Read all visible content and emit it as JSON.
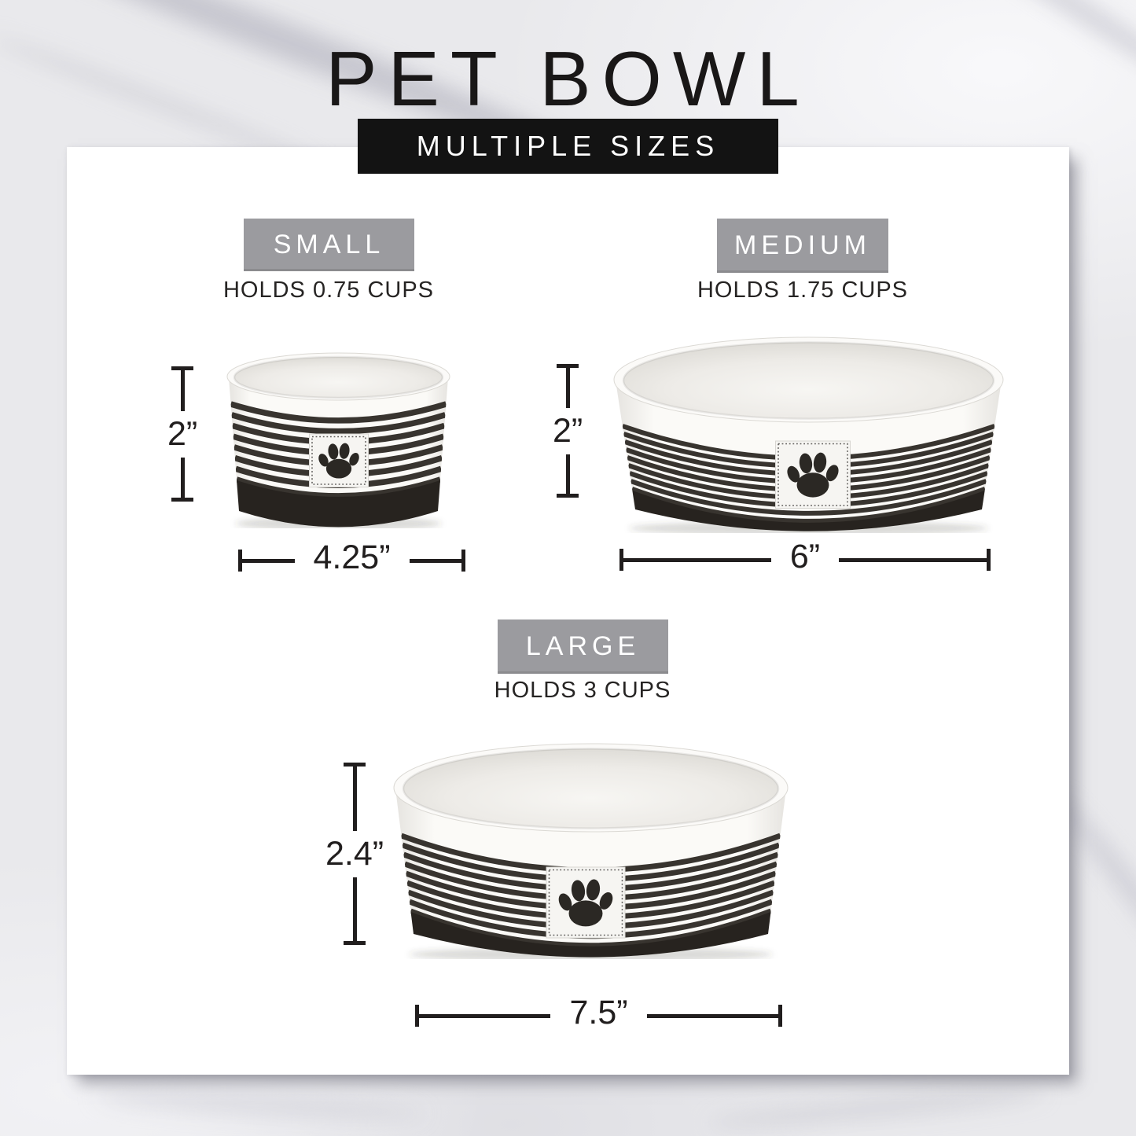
{
  "page": {
    "title": "PET BOWL",
    "banner": "MULTIPLE SIZES"
  },
  "sizes": [
    {
      "id": "small",
      "name": "SMALL",
      "holds": "HOLDS 0.75 CUPS",
      "height": "2”",
      "diameter": "4.25”"
    },
    {
      "id": "medium",
      "name": "MEDIUM",
      "holds": "HOLDS 1.75 CUPS",
      "height": "2”",
      "diameter": "6”"
    },
    {
      "id": "large",
      "name": "LARGE",
      "holds": "HOLDS 3 CUPS",
      "height": "2.4”",
      "diameter": "7.5”"
    }
  ],
  "icons": {
    "paw_patch": "paw-print"
  },
  "colors": {
    "banner_bg": "#131313",
    "size_label_bg": "#9b9b9f",
    "size_label_text": "#ffffff",
    "dimension_lines": "#211e1e",
    "bowl_stripe": "#38342f",
    "bowl_base": "#27231f",
    "card_bg": "#ffffff",
    "marble_bg": "#e9e9ec"
  }
}
